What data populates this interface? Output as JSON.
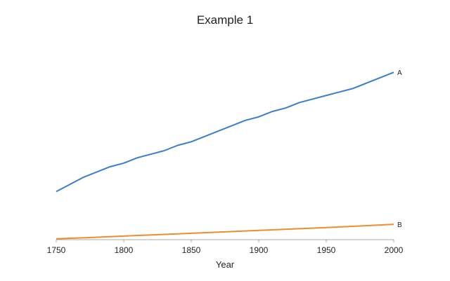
{
  "chart_data": {
    "type": "line",
    "title": "Example 1",
    "xlabel": "Year",
    "ylabel": "",
    "xlim": [
      1750,
      2000
    ],
    "ylim": [
      0,
      100
    ],
    "x_ticks": [
      "1750",
      "1800",
      "1850",
      "1900",
      "1950",
      "2000"
    ],
    "y_axis_visible": false,
    "grid": false,
    "legend": "none",
    "series": [
      {
        "name": "A",
        "color": "#3a7dc9",
        "x": [
          1750,
          1760,
          1770,
          1780,
          1790,
          1800,
          1810,
          1820,
          1830,
          1840,
          1850,
          1860,
          1870,
          1880,
          1890,
          1900,
          1910,
          1920,
          1930,
          1940,
          1950,
          1960,
          1970,
          1980,
          1990,
          2000
        ],
        "values": [
          27,
          31,
          35,
          38,
          41,
          43,
          46,
          48,
          50,
          53,
          55,
          58,
          61,
          64,
          67,
          69,
          72,
          74,
          77,
          79,
          81,
          83,
          85,
          88,
          91,
          94
        ]
      },
      {
        "name": "B",
        "color": "#f08c2a",
        "x": [
          1750,
          1775,
          1800,
          1825,
          1850,
          1875,
          1900,
          1925,
          1950,
          1975,
          2000
        ],
        "values": [
          0.5,
          1.2,
          2.0,
          2.8,
          3.6,
          4.4,
          5.2,
          6.0,
          6.8,
          7.7,
          8.6
        ]
      }
    ]
  }
}
